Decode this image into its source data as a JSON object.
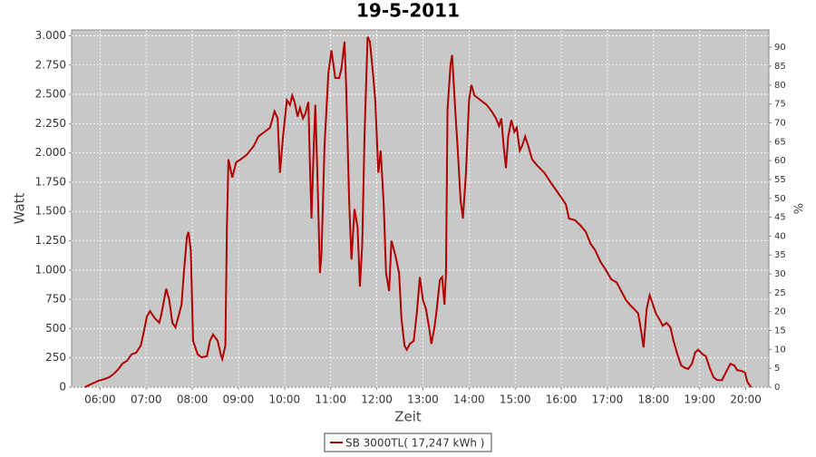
{
  "chart_data": {
    "type": "line",
    "title": "19-5-2011",
    "x_label": "Zeit",
    "y_label": "Watt",
    "y2_label": "%",
    "grid": true,
    "legend": "bottom",
    "xlim": [
      "05:23",
      "20:30"
    ],
    "xticks": [
      "06:00",
      "07:00",
      "08:00",
      "09:00",
      "10:00",
      "11:00",
      "12:00",
      "13:00",
      "14:00",
      "15:00",
      "16:00",
      "17:00",
      "18:00",
      "19:00",
      "20:00"
    ],
    "ylim": [
      0,
      3050
    ],
    "yticks": [
      0,
      250,
      500,
      750,
      {
        "value": 1000,
        "label": "1.000"
      },
      {
        "value": 1250,
        "label": "1.250"
      },
      {
        "value": 1500,
        "label": "1.500"
      },
      {
        "value": 1750,
        "label": "1.750"
      },
      {
        "value": 2000,
        "label": "2.000"
      },
      {
        "value": 2250,
        "label": "2.250"
      },
      {
        "value": 2500,
        "label": "2.500"
      },
      {
        "value": 2750,
        "label": "2.750"
      },
      {
        "value": 3000,
        "label": "3.000"
      }
    ],
    "y2lim": [
      0,
      94.6
    ],
    "y2ticks": [
      0,
      5,
      10,
      15,
      20,
      25,
      30,
      35,
      40,
      45,
      50,
      55,
      60,
      65,
      70,
      75,
      80,
      85,
      90
    ],
    "x": [
      "05:40",
      "05:48",
      "05:58",
      "06:06",
      "06:12",
      "06:18",
      "06:24",
      "06:29",
      "06:35",
      "06:41",
      "06:47",
      "06:53",
      "06:57",
      "07:01",
      "07:05",
      "07:11",
      "07:17",
      "07:20",
      "07:26",
      "07:30",
      "07:34",
      "07:38",
      "07:42",
      "07:46",
      "07:49",
      "07:53",
      "07:55",
      "07:58",
      "08:01",
      "08:07",
      "08:12",
      "08:19",
      "08:23",
      "08:27",
      "08:33",
      "08:37",
      "08:39",
      "08:43",
      "08:45",
      "08:47",
      "08:52",
      "08:57",
      "09:03",
      "09:11",
      "09:20",
      "09:26",
      "09:34",
      "09:41",
      "09:47",
      "09:51",
      "09:54",
      "09:58",
      "10:03",
      "10:07",
      "10:10",
      "10:13",
      "10:17",
      "10:20",
      "10:24",
      "10:27",
      "10:31",
      "10:33",
      "10:35",
      "10:38",
      "10:40",
      "10:43",
      "10:46",
      "10:48",
      "10:52",
      "10:57",
      "11:01",
      "11:06",
      "11:11",
      "11:14",
      "11:18",
      "11:20",
      "11:24",
      "11:27",
      "11:31",
      "11:35",
      "11:38",
      "11:41",
      "11:44",
      "11:48",
      "11:51",
      "11:55",
      "11:58",
      "12:02",
      "12:05",
      "12:09",
      "12:12",
      "12:16",
      "12:19",
      "12:24",
      "12:29",
      "12:32",
      "12:36",
      "12:39",
      "12:43",
      "12:48",
      "12:52",
      "12:56",
      "13:00",
      "13:04",
      "13:08",
      "13:11",
      "13:15",
      "13:18",
      "13:22",
      "13:25",
      "13:28",
      "13:30",
      "13:32",
      "13:36",
      "13:38",
      "13:42",
      "13:45",
      "13:49",
      "13:52",
      "13:56",
      "14:00",
      "14:03",
      "14:07",
      "14:15",
      "14:23",
      "14:30",
      "14:35",
      "14:39",
      "14:42",
      "14:45",
      "14:48",
      "14:51",
      "14:55",
      "14:59",
      "15:02",
      "15:06",
      "15:09",
      "15:13",
      "15:17",
      "15:22",
      "15:29",
      "15:38",
      "15:46",
      "15:54",
      "16:01",
      "16:06",
      "16:10",
      "16:18",
      "16:25",
      "16:32",
      "16:38",
      "16:44",
      "16:51",
      "16:58",
      "17:05",
      "17:12",
      "17:18",
      "17:24",
      "17:29",
      "17:35",
      "17:40",
      "17:44",
      "17:47",
      "17:51",
      "17:55",
      "17:58",
      "18:03",
      "18:08",
      "18:12",
      "18:17",
      "18:22",
      "18:26",
      "18:31",
      "18:36",
      "18:41",
      "18:45",
      "18:50",
      "18:54",
      "18:58",
      "19:04",
      "19:08",
      "19:13",
      "19:18",
      "19:23",
      "19:29",
      "19:34",
      "19:40",
      "19:45",
      "19:49",
      "19:54",
      "19:59",
      "20:02",
      "20:07"
    ],
    "series": [
      {
        "name": "SB 3000TL( 17,247 kWh )",
        "color": "#b00000",
        "values": [
          0,
          25,
          55,
          70,
          85,
          115,
          155,
          200,
          225,
          280,
          295,
          355,
          475,
          605,
          650,
          590,
          550,
          630,
          840,
          745,
          550,
          510,
          605,
          705,
          975,
          1285,
          1325,
          1170,
          395,
          280,
          255,
          265,
          395,
          450,
          395,
          280,
          240,
          355,
          1365,
          1945,
          1790,
          1920,
          1945,
          1985,
          2060,
          2140,
          2180,
          2215,
          2355,
          2295,
          1830,
          2140,
          2450,
          2410,
          2490,
          2435,
          2310,
          2385,
          2295,
          2335,
          2435,
          1905,
          1440,
          2060,
          2410,
          1750,
          975,
          1130,
          2060,
          2680,
          2875,
          2640,
          2640,
          2720,
          2950,
          2600,
          1595,
          1090,
          1520,
          1365,
          860,
          1210,
          2140,
          2990,
          2950,
          2680,
          2450,
          1830,
          2020,
          1560,
          975,
          820,
          1250,
          1130,
          975,
          590,
          355,
          320,
          370,
          395,
          630,
          940,
          745,
          665,
          510,
          370,
          510,
          665,
          915,
          940,
          705,
          975,
          2370,
          2760,
          2835,
          2370,
          2060,
          1595,
          1440,
          1830,
          2450,
          2580,
          2490,
          2450,
          2410,
          2350,
          2295,
          2230,
          2295,
          2060,
          1870,
          2140,
          2280,
          2180,
          2215,
          2020,
          2060,
          2140,
          2060,
          1945,
          1890,
          1830,
          1750,
          1675,
          1610,
          1560,
          1440,
          1425,
          1380,
          1325,
          1225,
          1170,
          1070,
          1000,
          920,
          895,
          820,
          745,
          705,
          665,
          630,
          475,
          340,
          665,
          785,
          730,
          630,
          575,
          525,
          550,
          510,
          395,
          280,
          185,
          165,
          155,
          200,
          295,
          320,
          280,
          265,
          165,
          85,
          60,
          60,
          125,
          200,
          185,
          145,
          140,
          125,
          45,
          0
        ]
      }
    ]
  }
}
